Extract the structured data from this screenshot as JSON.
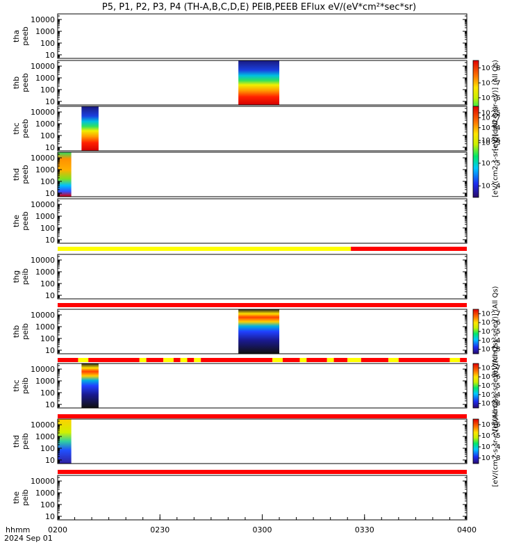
{
  "title": "P5, P1, P2, P3, P4 (TH-A,B,C,D,E) PEIB,PEEB EFlux eV/(eV*cm²*sec*sr)",
  "x_axis": {
    "label": "hhmm",
    "date": "2024 Sep 01",
    "ticks": [
      "0200",
      "0230",
      "0300",
      "0330",
      "0400"
    ]
  },
  "y_ticks": [
    "10000",
    "1000",
    "100",
    "10"
  ],
  "colorbars": [
    {
      "label": "[eV/(cm2-s-sr-eV)] (All Qs)",
      "ticks": [
        "10^3",
        "10^4",
        "10^5",
        "10^6",
        "10^7",
        "10^8"
      ]
    },
    {
      "label": "[eV/(cm2-s-sr-eV)] (All Qs)",
      "ticks": [
        "10^4",
        "10^5",
        "10^6",
        "10^7"
      ]
    },
    {
      "label": "[eV/(cm2-s-sr-eV)] (All Qs)",
      "ticks": [
        "10^3",
        "10^4",
        "10^5",
        "10^6",
        "10^7"
      ]
    },
    {
      "label": "[eV/(cm2-s-sr-eV)] (All Qs)",
      "ticks": [
        "10^3",
        "10^4",
        "10^5",
        "10^6",
        "10^7"
      ]
    },
    {
      "label": "[eV/(cm2-s-sr-eV)] (All Qs)",
      "ticks": [
        "10^3",
        "10^4",
        "10^5",
        "10^6"
      ]
    }
  ],
  "chart_data": {
    "type": "heatmap",
    "x_range": [
      "02:00",
      "04:00"
    ],
    "y_scale": "log",
    "y_range": [
      5,
      30000
    ],
    "panels": [
      {
        "label": [
          "tha",
          "peeb"
        ],
        "data_spans": []
      },
      {
        "label": [
          "thb",
          "peeb"
        ],
        "data_spans": [
          [
            "02:53",
            "03:05"
          ]
        ]
      },
      {
        "label": [
          "thc",
          "peeb"
        ],
        "data_spans": [
          [
            "02:07",
            "02:12"
          ]
        ]
      },
      {
        "label": [
          "thd",
          "peeb"
        ],
        "data_spans": [
          [
            "02:00",
            "02:04"
          ]
        ]
      },
      {
        "label": [
          "the",
          "peeb"
        ],
        "data_spans": []
      },
      {
        "label": [
          "thg",
          "peib"
        ],
        "data_spans": []
      },
      {
        "label": [
          "thb",
          "peib"
        ],
        "data_spans": [
          [
            "02:53",
            "03:05"
          ]
        ]
      },
      {
        "label": [
          "thc",
          "peib"
        ],
        "data_spans": [
          [
            "02:07",
            "02:12"
          ]
        ]
      },
      {
        "label": [
          "thd",
          "peib"
        ],
        "data_spans": [
          [
            "02:00",
            "02:04"
          ]
        ]
      },
      {
        "label": [
          "the",
          "peib"
        ],
        "data_spans": []
      }
    ],
    "status_bars": [
      {
        "segments": [
          [
            "02:00",
            "03:26",
            "#ffff00"
          ],
          [
            "03:26",
            "04:00",
            "#ff0000"
          ]
        ]
      },
      {
        "segments": [
          [
            "02:00",
            "04:00",
            "#ff0000"
          ]
        ]
      },
      {
        "segments": [
          [
            "02:00",
            "02:06",
            "#ff0000"
          ],
          [
            "02:06",
            "02:09",
            "#ffff00"
          ],
          [
            "02:09",
            "02:24",
            "#ff0000"
          ],
          [
            "02:24",
            "02:26",
            "#ffff00"
          ],
          [
            "02:26",
            "02:31",
            "#ff0000"
          ],
          [
            "02:31",
            "02:34",
            "#ffff00"
          ],
          [
            "02:34",
            "02:36",
            "#ff0000"
          ],
          [
            "02:36",
            "02:38",
            "#ffff00"
          ],
          [
            "02:38",
            "02:40",
            "#ff0000"
          ],
          [
            "02:40",
            "02:42",
            "#ffff00"
          ],
          [
            "02:42",
            "03:03",
            "#ff0000"
          ],
          [
            "03:03",
            "03:06",
            "#ffff00"
          ],
          [
            "03:06",
            "03:11",
            "#ff0000"
          ],
          [
            "03:11",
            "03:13",
            "#ffff00"
          ],
          [
            "03:13",
            "03:19",
            "#ff0000"
          ],
          [
            "03:19",
            "03:21",
            "#ffff00"
          ],
          [
            "03:21",
            "03:25",
            "#ff0000"
          ],
          [
            "03:25",
            "03:29",
            "#ffff00"
          ],
          [
            "03:29",
            "03:37",
            "#ff0000"
          ],
          [
            "03:37",
            "03:40",
            "#ffff00"
          ],
          [
            "03:40",
            "03:55",
            "#ff0000"
          ],
          [
            "03:55",
            "03:58",
            "#ffff00"
          ],
          [
            "03:58",
            "04:00",
            "#ff0000"
          ]
        ]
      },
      {
        "segments": [
          [
            "02:00",
            "04:00",
            "#ff0000"
          ]
        ]
      },
      {
        "segments": [
          [
            "02:00",
            "04:00",
            "#ff0000"
          ]
        ]
      }
    ]
  }
}
